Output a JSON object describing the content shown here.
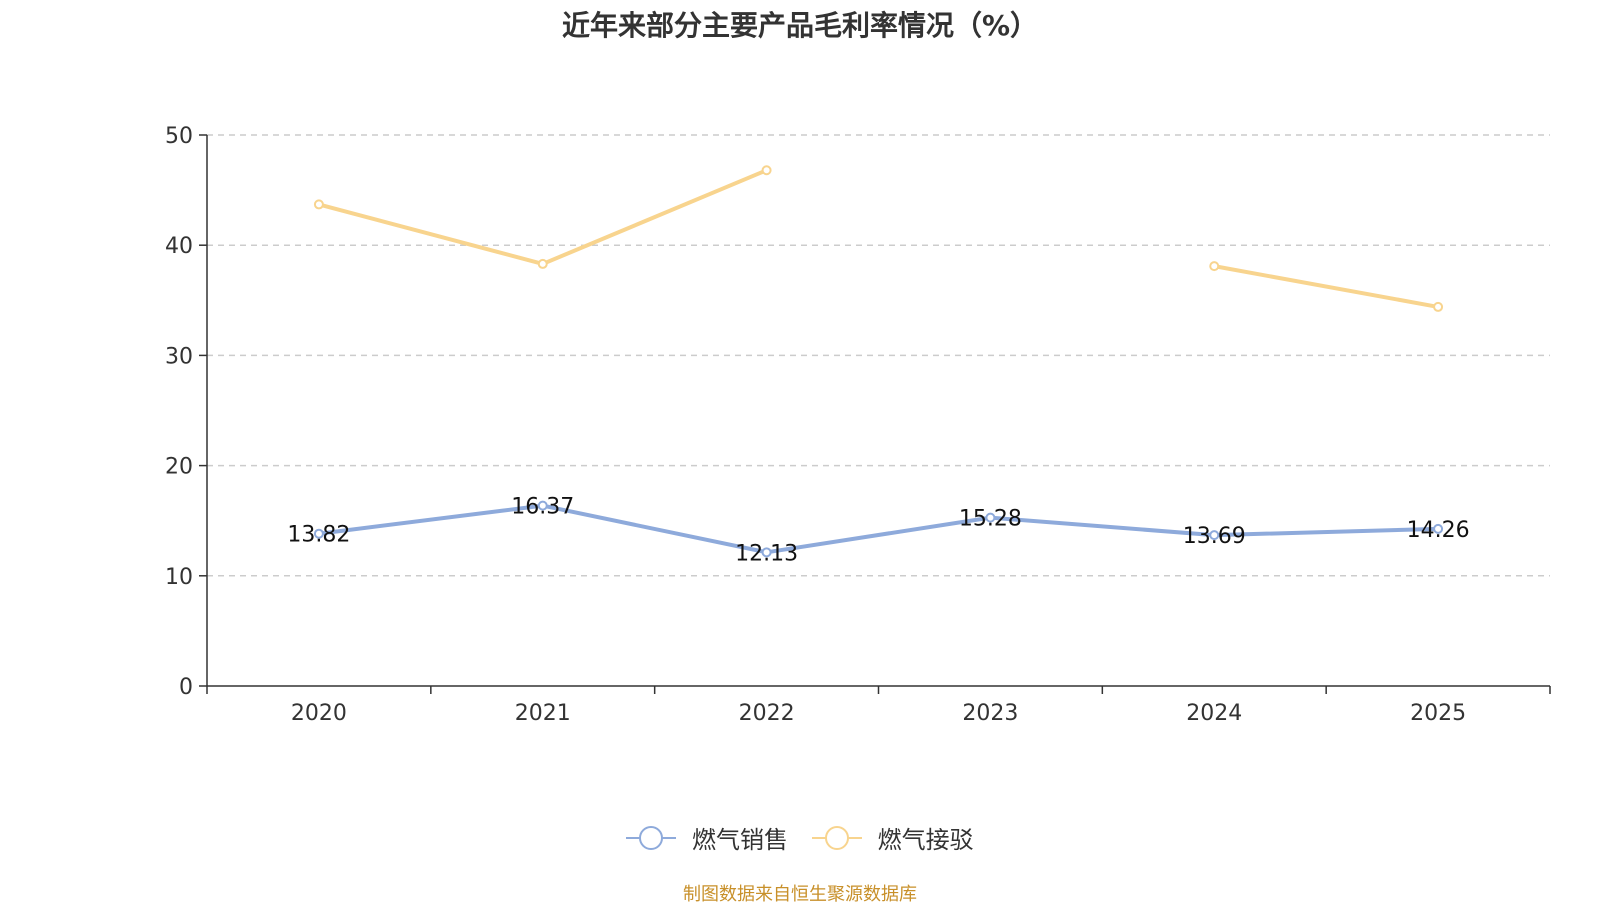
{
  "chart_data": {
    "type": "line",
    "title": "近年来部分主要产品毛利率情况（%）",
    "categories": [
      "2020",
      "2021",
      "2022",
      "2023",
      "2024",
      "2025"
    ],
    "ylim": [
      0,
      50
    ],
    "yticks": [
      0,
      10,
      20,
      30,
      40,
      50
    ],
    "grid": true,
    "series": [
      {
        "name": "燃气销售",
        "color": "#8eaadb",
        "values": [
          13.82,
          16.37,
          12.13,
          15.28,
          13.69,
          14.26
        ],
        "labels": [
          "13.82",
          "16.37",
          "12.13",
          "15.28",
          "13.69",
          "14.26"
        ]
      },
      {
        "name": "燃气接驳",
        "color": "#f8d48e",
        "values": [
          43.7,
          38.3,
          46.8,
          null,
          38.1,
          34.4
        ]
      }
    ],
    "legend_position": "bottom-center",
    "source": "制图数据来自恒生聚源数据库"
  }
}
